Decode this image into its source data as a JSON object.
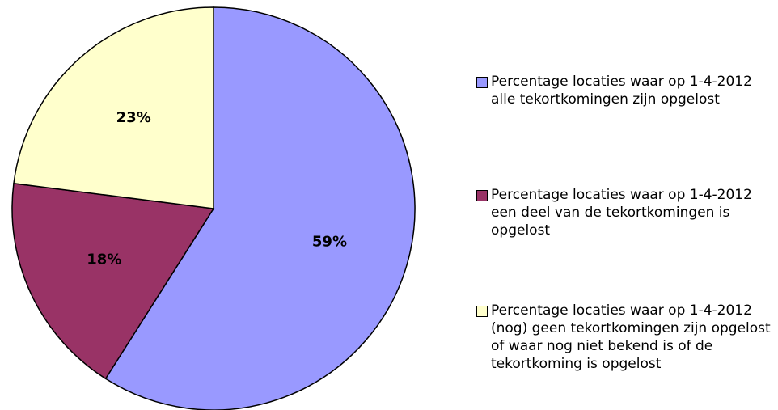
{
  "chart_data": {
    "type": "pie",
    "categories": [
      "Percentage locaties waar op 1-4-2012 alle tekortkomingen zijn opgelost",
      "Percentage locaties waar op 1-4-2012 een deel van de tekortkomingen is opgelost",
      "Percentage locaties waar op 1-4-2012 (nog) geen tekortkomingen zijn opgelost of waar nog niet bekend is of de tekortkoming is opgelost"
    ],
    "values": [
      59,
      18,
      23
    ],
    "value_labels": [
      "59%",
      "18%",
      "23%"
    ],
    "colors": [
      "#9999ff",
      "#993366",
      "#ffffcc"
    ],
    "legend": "right"
  }
}
